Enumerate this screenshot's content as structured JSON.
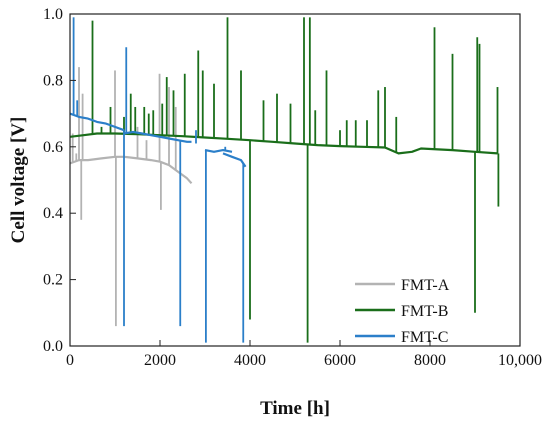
{
  "chart_data": {
    "type": "line",
    "xlabel": "Time [h]",
    "ylabel": "Cell voltage [V]",
    "xlim": [
      0,
      10000
    ],
    "ylim": [
      0.0,
      1.0
    ],
    "x_ticks": [
      0,
      2000,
      4000,
      6000,
      8000,
      10000
    ],
    "x_tick_labels": [
      "0",
      "2000",
      "4000",
      "6000",
      "8000",
      "10,000"
    ],
    "y_ticks": [
      0.0,
      0.2,
      0.4,
      0.6,
      0.8,
      1.0
    ],
    "y_tick_labels": [
      "0.0",
      "0.2",
      "0.4",
      "0.6",
      "0.8",
      "1.0"
    ],
    "grid": false,
    "legend_position": "bottom-right",
    "series": [
      {
        "name": "FMT-A",
        "color": "#b3b3b3",
        "x": [
          0,
          200,
          400,
          700,
          1000,
          1200,
          1500,
          1800,
          2000,
          2200,
          2400,
          2600,
          2700
        ],
        "y": [
          0.55,
          0.56,
          0.56,
          0.565,
          0.57,
          0.57,
          0.565,
          0.56,
          0.555,
          0.545,
          0.525,
          0.505,
          0.49
        ],
        "spikes": [
          {
            "x": 60,
            "y": 0.64
          },
          {
            "x": 140,
            "y": 0.58
          },
          {
            "x": 200,
            "y": 0.84
          },
          {
            "x": 250,
            "y": 0.38
          },
          {
            "x": 280,
            "y": 0.76
          },
          {
            "x": 1000,
            "y": 0.83
          },
          {
            "x": 1020,
            "y": 0.06
          },
          {
            "x": 1500,
            "y": 0.66
          },
          {
            "x": 1700,
            "y": 0.62
          },
          {
            "x": 1990,
            "y": 0.82
          },
          {
            "x": 2020,
            "y": 0.41
          },
          {
            "x": 2200,
            "y": 0.78
          },
          {
            "x": 2350,
            "y": 0.72
          }
        ]
      },
      {
        "name": "FMT-B",
        "color": "#1a6e1a",
        "x": [
          0,
          300,
          600,
          1000,
          1500,
          2000,
          2500,
          3000,
          3500,
          4000,
          4500,
          5000,
          5500,
          6000,
          6500,
          7000,
          7300,
          7600,
          7800,
          8500,
          9000,
          9500
        ],
        "y": [
          0.63,
          0.635,
          0.64,
          0.64,
          0.638,
          0.635,
          0.632,
          0.628,
          0.624,
          0.62,
          0.615,
          0.61,
          0.605,
          0.602,
          0.6,
          0.598,
          0.58,
          0.585,
          0.595,
          0.59,
          0.585,
          0.58
        ],
        "spikes": [
          {
            "x": 500,
            "y": 0.98
          },
          {
            "x": 700,
            "y": 0.66
          },
          {
            "x": 900,
            "y": 0.72
          },
          {
            "x": 1200,
            "y": 0.69
          },
          {
            "x": 1350,
            "y": 0.76
          },
          {
            "x": 1450,
            "y": 0.72
          },
          {
            "x": 1650,
            "y": 0.72
          },
          {
            "x": 1750,
            "y": 0.7
          },
          {
            "x": 1850,
            "y": 0.71
          },
          {
            "x": 2050,
            "y": 0.73
          },
          {
            "x": 2150,
            "y": 0.81
          },
          {
            "x": 2300,
            "y": 0.77
          },
          {
            "x": 2550,
            "y": 0.82
          },
          {
            "x": 2850,
            "y": 0.89
          },
          {
            "x": 2950,
            "y": 0.83
          },
          {
            "x": 3200,
            "y": 0.79
          },
          {
            "x": 3500,
            "y": 0.99
          },
          {
            "x": 3800,
            "y": 0.83
          },
          {
            "x": 4000,
            "y": 0.08
          },
          {
            "x": 4300,
            "y": 0.74
          },
          {
            "x": 4600,
            "y": 0.76
          },
          {
            "x": 4900,
            "y": 0.73
          },
          {
            "x": 5200,
            "y": 0.99
          },
          {
            "x": 5280,
            "y": 0.01
          },
          {
            "x": 5330,
            "y": 0.99
          },
          {
            "x": 5450,
            "y": 0.71
          },
          {
            "x": 5700,
            "y": 0.83
          },
          {
            "x": 6000,
            "y": 0.65
          },
          {
            "x": 6150,
            "y": 0.68
          },
          {
            "x": 6350,
            "y": 0.68
          },
          {
            "x": 6600,
            "y": 0.68
          },
          {
            "x": 6850,
            "y": 0.77
          },
          {
            "x": 7000,
            "y": 0.78
          },
          {
            "x": 7250,
            "y": 0.69
          },
          {
            "x": 8100,
            "y": 0.96
          },
          {
            "x": 8500,
            "y": 0.88
          },
          {
            "x": 9000,
            "y": 0.1
          },
          {
            "x": 9050,
            "y": 0.93
          },
          {
            "x": 9100,
            "y": 0.91
          },
          {
            "x": 9500,
            "y": 0.78
          },
          {
            "x": 9520,
            "y": 0.42
          }
        ]
      },
      {
        "name": "FMT-C",
        "color": "#2b7fc9",
        "segments": [
          {
            "x": [
              0,
              200,
              400,
              600,
              800,
              1000,
              1200
            ],
            "y": [
              0.7,
              0.69,
              0.685,
              0.675,
              0.67,
              0.66,
              0.65
            ]
          },
          {
            "x": [
              1200,
              1400,
              1600,
              1800,
              2000,
              2200,
              2400,
              2600,
              2700
            ],
            "y": [
              0.64,
              0.645,
              0.64,
              0.635,
              0.63,
              0.625,
              0.62,
              0.615,
              0.615
            ]
          },
          {
            "x": [
              3000,
              3200,
              3400,
              3600
            ],
            "y": [
              0.59,
              0.585,
              0.59,
              0.585
            ]
          },
          {
            "x": [
              3400,
              3600,
              3800,
              3900
            ],
            "y": [
              0.58,
              0.57,
              0.56,
              0.54
            ]
          }
        ],
        "spikes": [
          {
            "x": 80,
            "y": 0.99
          },
          {
            "x": 160,
            "y": 0.74
          },
          {
            "x": 1200,
            "y": 0.06
          },
          {
            "x": 1250,
            "y": 0.9
          },
          {
            "x": 2450,
            "y": 0.06
          },
          {
            "x": 2800,
            "y": 0.61
          },
          {
            "x": 3020,
            "y": 0.01
          },
          {
            "x": 3450,
            "y": 0.6
          },
          {
            "x": 3850,
            "y": 0.01
          }
        ]
      }
    ]
  }
}
